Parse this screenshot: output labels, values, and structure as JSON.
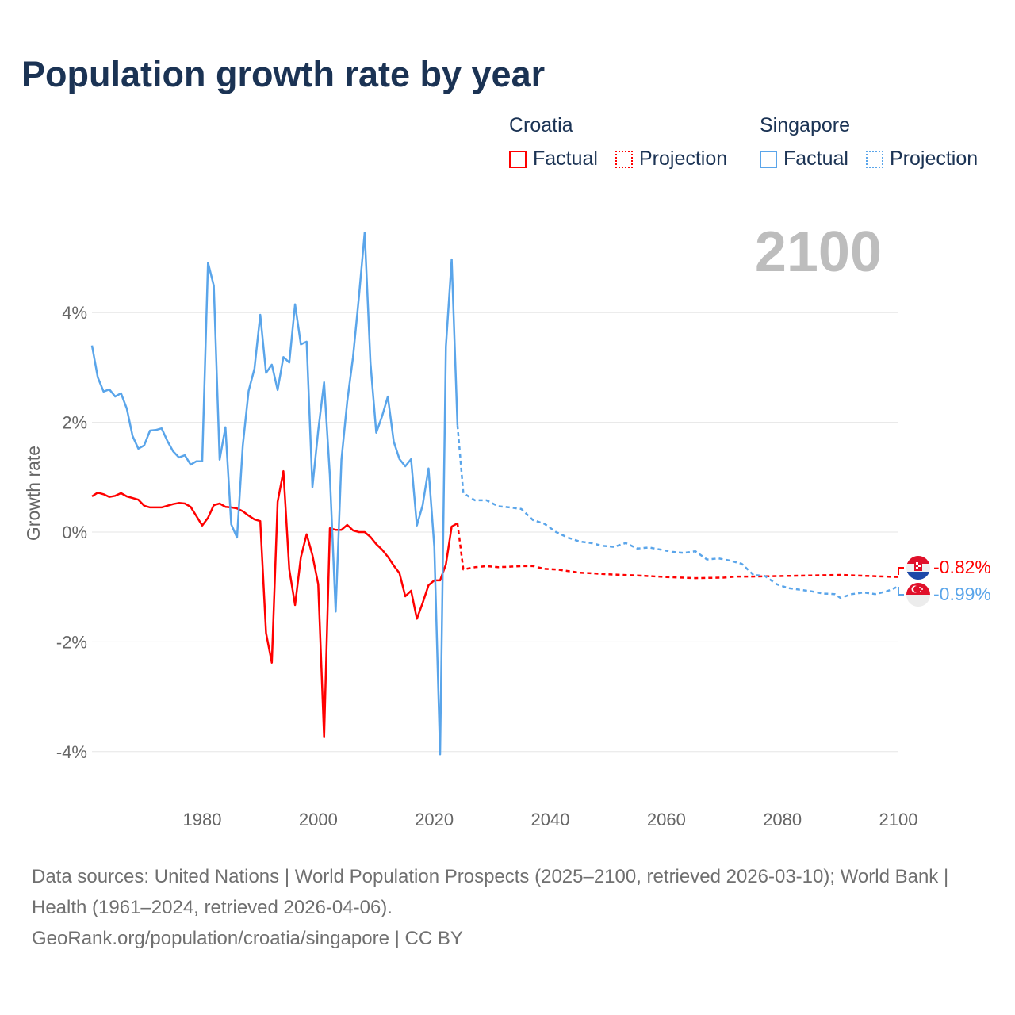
{
  "title": "Population growth rate by year",
  "legend": {
    "groups": [
      {
        "name": "Croatia",
        "color": "#ff0000",
        "factual": "Factual",
        "projection": "Projection"
      },
      {
        "name": "Singapore",
        "color": "#5aa5ea",
        "factual": "Factual",
        "projection": "Projection"
      }
    ]
  },
  "year_display": "2100",
  "end_labels": {
    "croatia": "-0.82%",
    "singapore": "-0.99%"
  },
  "footer": {
    "sources": "Data sources: United Nations | World Population Prospects (2025–2100, retrieved 2026-03-10); World Bank | Health (1961–2024, retrieved 2026-04-06).",
    "credit": "GeoRank.org/population/croatia/singapore | CC BY"
  },
  "chart_data": {
    "type": "line",
    "title": "Population growth rate by year",
    "xlabel": "",
    "ylabel": "Growth rate",
    "xlim": [
      1961,
      2100
    ],
    "ylim": [
      -4.8,
      5.6
    ],
    "xticks": [
      1980,
      2000,
      2020,
      2040,
      2060,
      2080,
      2100
    ],
    "yticks": [
      4,
      2,
      0,
      -2,
      -4
    ],
    "ytick_labels": [
      "4%",
      "2%",
      "0%",
      "-2%",
      "-4%"
    ],
    "grid": true,
    "legend_position": "top-right",
    "series": [
      {
        "name": "Croatia Factual",
        "color": "#ff0000",
        "style": "solid",
        "start_year": 1961,
        "values": [
          0.65,
          0.72,
          0.69,
          0.64,
          0.66,
          0.71,
          0.65,
          0.62,
          0.59,
          0.48,
          0.45,
          0.45,
          0.45,
          0.48,
          0.51,
          0.53,
          0.52,
          0.46,
          0.29,
          0.12,
          0.26,
          0.49,
          0.52,
          0.46,
          0.45,
          0.43,
          0.38,
          0.3,
          0.23,
          0.2,
          -1.84,
          -2.38,
          0.55,
          1.11,
          -0.68,
          -1.33,
          -0.46,
          -0.04,
          -0.42,
          -0.95,
          -3.74,
          0.07,
          0.04,
          0.04,
          0.13,
          0.03,
          0.0,
          0.0,
          -0.09,
          -0.22,
          -0.32,
          -0.45,
          -0.61,
          -0.75,
          -1.17,
          -1.07,
          -1.58,
          -1.29,
          -0.97,
          -0.88,
          -0.88,
          -0.59,
          0.1,
          0.16
        ]
      },
      {
        "name": "Croatia Projection",
        "color": "#ff0000",
        "style": "dotted",
        "points": [
          [
            2024,
            0.16
          ],
          [
            2025,
            -0.68
          ],
          [
            2027,
            -0.64
          ],
          [
            2029,
            -0.62
          ],
          [
            2031,
            -0.64
          ],
          [
            2033,
            -0.63
          ],
          [
            2035,
            -0.62
          ],
          [
            2037,
            -0.62
          ],
          [
            2039,
            -0.67
          ],
          [
            2041,
            -0.68
          ],
          [
            2043,
            -0.71
          ],
          [
            2045,
            -0.74
          ],
          [
            2047,
            -0.75
          ],
          [
            2050,
            -0.77
          ],
          [
            2055,
            -0.79
          ],
          [
            2060,
            -0.82
          ],
          [
            2065,
            -0.84
          ],
          [
            2070,
            -0.83
          ],
          [
            2072,
            -0.81
          ],
          [
            2075,
            -0.81
          ],
          [
            2080,
            -0.8
          ],
          [
            2085,
            -0.79
          ],
          [
            2090,
            -0.78
          ],
          [
            2095,
            -0.8
          ],
          [
            2100,
            -0.82
          ]
        ]
      },
      {
        "name": "Singapore Factual",
        "color": "#5aa5ea",
        "style": "solid",
        "start_year": 1961,
        "values": [
          3.4,
          2.82,
          2.56,
          2.6,
          2.47,
          2.53,
          2.25,
          1.75,
          1.52,
          1.58,
          1.85,
          1.86,
          1.89,
          1.66,
          1.47,
          1.36,
          1.4,
          1.23,
          1.29,
          1.29,
          4.91,
          4.49,
          1.32,
          1.91,
          0.14,
          -0.1,
          1.58,
          2.57,
          2.98,
          3.96,
          2.9,
          3.05,
          2.59,
          3.19,
          3.09,
          4.15,
          3.42,
          3.47,
          0.82,
          1.85,
          2.73,
          1.03,
          -1.45,
          1.32,
          2.38,
          3.19,
          4.28,
          5.46,
          3.08,
          1.81,
          2.11,
          2.47,
          1.65,
          1.33,
          1.2,
          1.33,
          0.12,
          0.49,
          1.16,
          -0.27,
          -4.05,
          3.38,
          4.97,
          1.95
        ]
      },
      {
        "name": "Singapore Projection",
        "color": "#5aa5ea",
        "style": "dotted",
        "points": [
          [
            2024,
            1.95
          ],
          [
            2025,
            0.71
          ],
          [
            2027,
            0.58
          ],
          [
            2029,
            0.58
          ],
          [
            2031,
            0.47
          ],
          [
            2033,
            0.45
          ],
          [
            2035,
            0.42
          ],
          [
            2037,
            0.22
          ],
          [
            2039,
            0.15
          ],
          [
            2041,
            0.0
          ],
          [
            2043,
            -0.1
          ],
          [
            2045,
            -0.17
          ],
          [
            2047,
            -0.2
          ],
          [
            2049,
            -0.25
          ],
          [
            2051,
            -0.27
          ],
          [
            2053,
            -0.2
          ],
          [
            2055,
            -0.3
          ],
          [
            2057,
            -0.28
          ],
          [
            2059,
            -0.32
          ],
          [
            2061,
            -0.36
          ],
          [
            2063,
            -0.38
          ],
          [
            2065,
            -0.35
          ],
          [
            2067,
            -0.5
          ],
          [
            2069,
            -0.48
          ],
          [
            2071,
            -0.52
          ],
          [
            2073,
            -0.58
          ],
          [
            2075,
            -0.78
          ],
          [
            2077,
            -0.8
          ],
          [
            2079,
            -0.95
          ],
          [
            2081,
            -1.02
          ],
          [
            2083,
            -1.05
          ],
          [
            2085,
            -1.08
          ],
          [
            2087,
            -1.12
          ],
          [
            2089,
            -1.13
          ],
          [
            2090,
            -1.2
          ],
          [
            2092,
            -1.13
          ],
          [
            2094,
            -1.1
          ],
          [
            2096,
            -1.13
          ],
          [
            2098,
            -1.08
          ],
          [
            2100,
            -0.99
          ]
        ]
      }
    ]
  }
}
